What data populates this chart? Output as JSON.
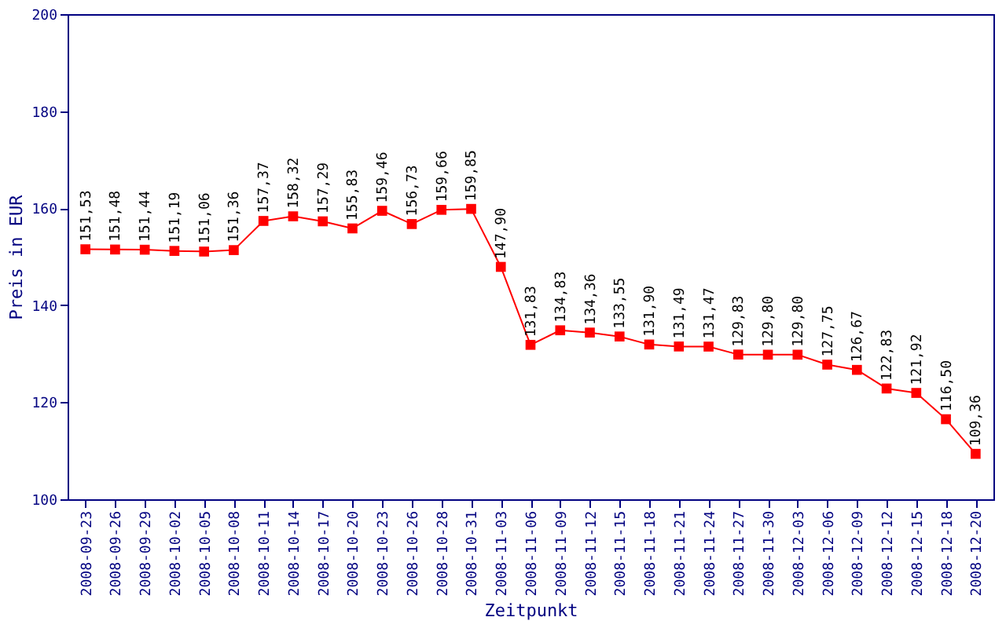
{
  "chart_data": {
    "type": "line",
    "xlabel": "Zeitpunkt",
    "ylabel": "Preis in EUR",
    "marker": "square",
    "line_style": "solid",
    "ylim": [
      100,
      200
    ],
    "yticks": [
      100,
      120,
      140,
      160,
      180,
      200
    ],
    "categories": [
      "2008-09-23",
      "2008-09-26",
      "2008-09-29",
      "2008-10-02",
      "2008-10-05",
      "2008-10-08",
      "2008-10-11",
      "2008-10-14",
      "2008-10-17",
      "2008-10-20",
      "2008-10-23",
      "2008-10-26",
      "2008-10-28",
      "2008-10-31",
      "2008-11-03",
      "2008-11-06",
      "2008-11-09",
      "2008-11-12",
      "2008-11-15",
      "2008-11-18",
      "2008-11-21",
      "2008-11-24",
      "2008-11-27",
      "2008-11-30",
      "2008-12-03",
      "2008-12-06",
      "2008-12-09",
      "2008-12-12",
      "2008-12-15",
      "2008-12-18",
      "2008-12-20"
    ],
    "series": [
      {
        "color": "#ff0000",
        "values": [
          151.53,
          151.48,
          151.44,
          151.19,
          151.06,
          151.36,
          157.37,
          158.32,
          157.29,
          155.83,
          159.46,
          156.73,
          159.66,
          159.85,
          147.9,
          131.83,
          134.83,
          134.36,
          133.55,
          131.9,
          131.49,
          131.47,
          129.83,
          129.8,
          129.8,
          127.75,
          126.67,
          122.83,
          121.92,
          116.5,
          109.36
        ],
        "value_labels": [
          "151,53",
          "151,48",
          "151,44",
          "151,19",
          "151,06",
          "151,36",
          "157,37",
          "158,32",
          "157,29",
          "155,83",
          "159,46",
          "156,73",
          "159,66",
          "159,85",
          "147,90",
          "131,83",
          "134,83",
          "134,36",
          "133,55",
          "131,90",
          "131,49",
          "131,47",
          "129,83",
          "129,80",
          "129,80",
          "127,75",
          "126,67",
          "122,83",
          "121,92",
          "116,50",
          "109,36"
        ]
      }
    ]
  }
}
